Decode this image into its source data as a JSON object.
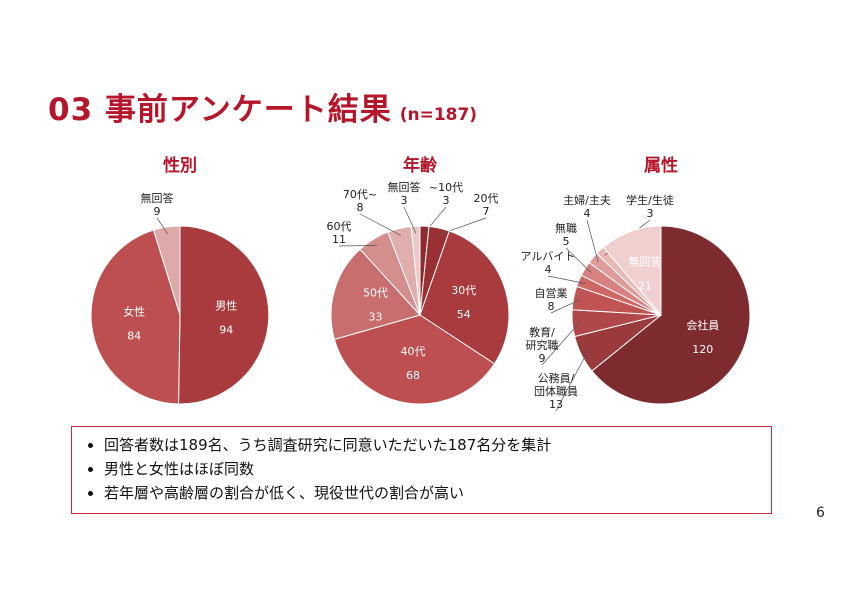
{
  "title": {
    "main": "03 事前アンケート結果",
    "sub": "(n=187)"
  },
  "colors": {
    "accent": "#b5162b",
    "box_border": "#c62a3b"
  },
  "chart_data": [
    {
      "type": "pie",
      "title": "性別",
      "slices": [
        {
          "label": "男性",
          "value": 94,
          "color": "#a93b3e",
          "inside": true
        },
        {
          "label": "女性",
          "value": 84,
          "color": "#bd4f51",
          "inside": true
        },
        {
          "label": "無回答",
          "value": 9,
          "color": "#ddaaa9",
          "inside": false
        }
      ]
    },
    {
      "type": "pie",
      "title": "年齢",
      "slices": [
        {
          "label": "~10代",
          "value": 3,
          "color": "#8e2a2c",
          "inside": false
        },
        {
          "label": "20代",
          "value": 7,
          "color": "#9a3033",
          "inside": false
        },
        {
          "label": "30代",
          "value": 54,
          "color": "#a93b3e",
          "inside": true
        },
        {
          "label": "40代",
          "value": 68,
          "color": "#bd4f51",
          "inside": true
        },
        {
          "label": "50代",
          "value": 33,
          "color": "#c86e6e",
          "inside": true
        },
        {
          "label": "60代",
          "value": 11,
          "color": "#d48e8d",
          "inside": false
        },
        {
          "label": "70代~",
          "value": 8,
          "color": "#e0aeac",
          "inside": false
        },
        {
          "label": "無回答",
          "value": 3,
          "color": "#ecc9c7",
          "inside": false
        }
      ]
    },
    {
      "type": "pie",
      "title": "属性",
      "slices": [
        {
          "label": "会社員",
          "value": 120,
          "color": "#7d2b2f",
          "inside": true
        },
        {
          "label": "公務員/団体職員",
          "value": 13,
          "color": "#9a3a3d",
          "inside": false
        },
        {
          "label": "教育/研究職",
          "value": 9,
          "color": "#b04748",
          "inside": false
        },
        {
          "label": "自営業",
          "value": 8,
          "color": "#c05454",
          "inside": false
        },
        {
          "label": "アルバイト",
          "value": 4,
          "color": "#cd6866",
          "inside": false
        },
        {
          "label": "無職",
          "value": 5,
          "color": "#d78180",
          "inside": false
        },
        {
          "label": "主婦/主夫",
          "value": 4,
          "color": "#e09c9a",
          "inside": false
        },
        {
          "label": "学生/生徒",
          "value": 3,
          "color": "#e8b8b6",
          "inside": false
        },
        {
          "label": "無回答",
          "value": 21,
          "color": "#f0d0ce",
          "inside": true
        }
      ]
    }
  ],
  "bullets": [
    "回答者数は189名、うち調査研究に同意いただいた187名分を集計",
    "男性と女性はほぼ同数",
    "若年層や高齢層の割合が低く、現役世代の割合が高い"
  ],
  "page_number": "6"
}
